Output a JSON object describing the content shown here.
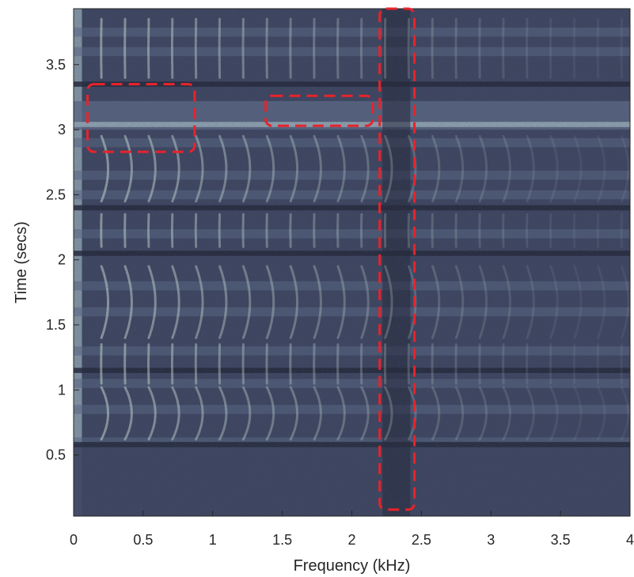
{
  "chart_data": {
    "type": "heatmap",
    "title": "",
    "xlabel": "Frequency (kHz)",
    "ylabel": "Time (secs)",
    "xlim": [
      0,
      4
    ],
    "ylim": [
      0.03,
      3.93
    ],
    "x_ticks": [
      0,
      0.5,
      1,
      1.5,
      2,
      2.5,
      3,
      3.5,
      4
    ],
    "x_tick_labels": [
      "0",
      "0.5",
      "1",
      "1.5",
      "2",
      "2.5",
      "3",
      "3.5",
      "4"
    ],
    "y_ticks": [
      0.5,
      1,
      1.5,
      2,
      2.5,
      3,
      3.5
    ],
    "y_tick_labels": [
      "0.5",
      "1",
      "1.5",
      "2",
      "2.5",
      "3",
      "3.5"
    ],
    "grid": false,
    "colormap": [
      "#262a3d",
      "#3d4560",
      "#5a6683",
      "#8fa3b0",
      "#c8dcd6"
    ],
    "bright_time_bands": [
      0.6,
      0.85,
      1.05,
      1.3,
      1.6,
      1.8,
      2.2,
      2.5,
      2.65,
      2.9,
      3.6,
      3.75
    ],
    "dark_time_bands": [
      0.58,
      1.15,
      2.05,
      2.4,
      3.35
    ],
    "highlight_regions": [
      {
        "x": [
          0.1,
          0.87
        ],
        "y": [
          2.83,
          3.35
        ]
      },
      {
        "x": [
          1.38,
          2.15
        ],
        "y": [
          3.03,
          3.26
        ]
      },
      {
        "x": [
          2.2,
          2.45
        ],
        "y": [
          0.08,
          3.93
        ]
      }
    ],
    "highlight_color": "#e8232a"
  }
}
